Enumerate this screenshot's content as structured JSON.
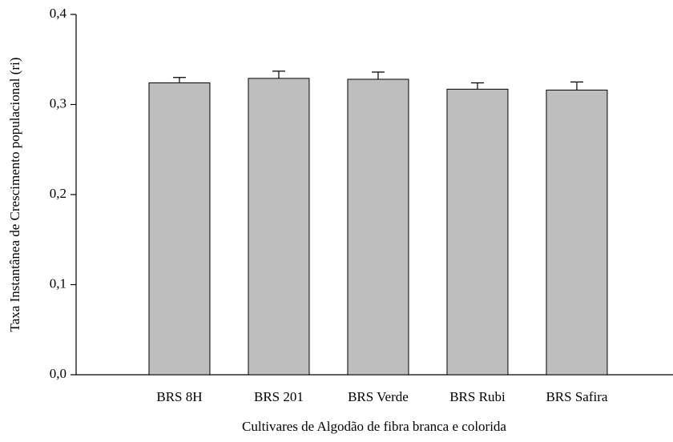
{
  "chart_data": {
    "type": "bar",
    "xlabel": "Cultivares de Algodão de fibra branca e colorida",
    "ylabel": "Taxa Instantânea de Crescimento populacional (ri)",
    "categories": [
      "BRS 8H",
      "BRS 201",
      "BRS Verde",
      "BRS Rubi",
      "BRS Safira"
    ],
    "values": [
      0.324,
      0.329,
      0.328,
      0.317,
      0.316
    ],
    "errors": [
      0.006,
      0.008,
      0.008,
      0.007,
      0.009
    ],
    "color": "#bebebe",
    "ylim": [
      0,
      0.4
    ],
    "yticks": [
      {
        "value": 0,
        "label": "0,0"
      },
      {
        "value": 0.1,
        "label": "0,1"
      },
      {
        "value": 0.2,
        "label": "0,2"
      },
      {
        "value": 0.3,
        "label": "0,3"
      },
      {
        "value": 0.4,
        "label": "0,4"
      }
    ],
    "grid": false
  }
}
